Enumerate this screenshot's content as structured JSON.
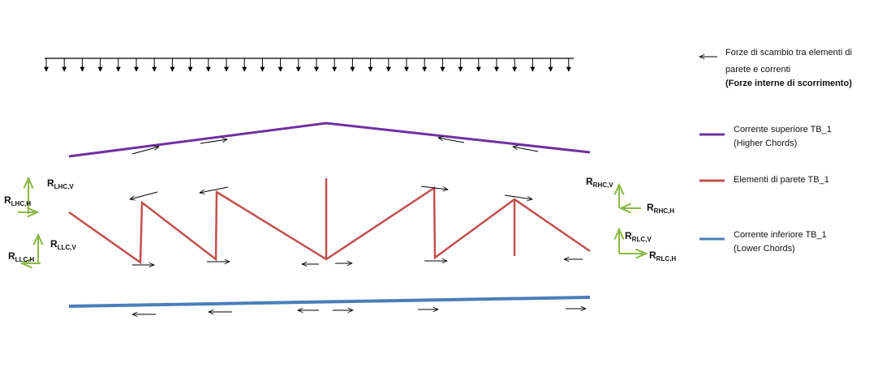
{
  "legend": {
    "exchange_forces": {
      "line1": "Forze di scambio tra elementi di",
      "line2": "parete e correnti",
      "line3": "(Forze interne di scorrimento)"
    },
    "upper_chord": {
      "line1": "Corrente superiore TB_1",
      "line2": "(Higher Chords)"
    },
    "web_elements": {
      "line1": "Elementi di parete TB_1"
    },
    "lower_chord": {
      "line1": "Corrente inferiore TB_1",
      "line2": "(Lower Chords)"
    }
  },
  "reactions": [
    {
      "main": "R",
      "sub": "LHC,V"
    },
    {
      "main": "R",
      "sub": "LHC,H"
    },
    {
      "main": "R",
      "sub": "LLC,V"
    },
    {
      "main": "R",
      "sub": "LLC,H"
    },
    {
      "main": "R",
      "sub": "RHC,V"
    },
    {
      "main": "R",
      "sub": "RHC,H"
    },
    {
      "main": "R",
      "sub": "RLC,V"
    },
    {
      "main": "R",
      "sub": "RLC,H"
    }
  ]
}
